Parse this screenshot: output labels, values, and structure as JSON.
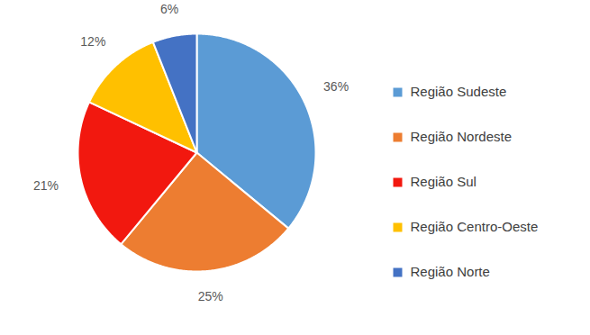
{
  "chart_data": {
    "type": "pie",
    "categories": [
      "Região Sudeste",
      "Região Nordeste",
      "Região Sul",
      "Região Centro-Oeste",
      "Região Norte"
    ],
    "values": [
      36,
      25,
      21,
      12,
      6
    ],
    "value_labels": [
      "36%",
      "25%",
      "21%",
      "12%",
      "6%"
    ],
    "colors": [
      "#5b9bd5",
      "#ed7d31",
      "#f2180f",
      "#ffc000",
      "#4472c4"
    ],
    "data_labels": true,
    "legend": "right"
  }
}
